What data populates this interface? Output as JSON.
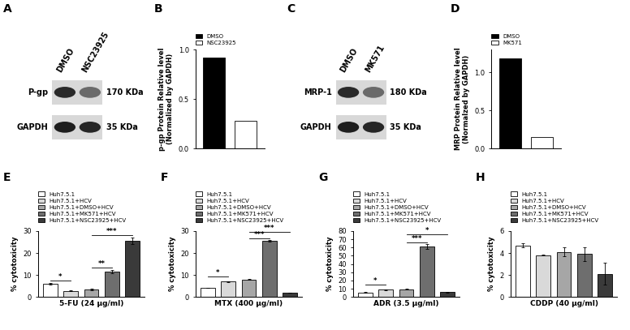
{
  "blots": [
    {
      "panel": "A",
      "lanes": [
        "DMSO",
        "NSC23925"
      ],
      "rows": [
        {
          "protein": "P-gp",
          "size": "170 KDa"
        },
        {
          "protein": "GAPDH",
          "size": "35 KDa"
        }
      ]
    },
    {
      "panel": "C",
      "lanes": [
        "DMSO",
        "MK571"
      ],
      "rows": [
        {
          "protein": "MRP-1",
          "size": "180 KDa"
        },
        {
          "protein": "GAPDH",
          "size": "35 KDa"
        }
      ]
    }
  ],
  "chart_data": [
    {
      "panel": "B",
      "type": "bar",
      "ylabel": "p-gp Protein Relative level\n(Normalized by GAPDH)",
      "ylim": [
        0,
        1.0
      ],
      "yticks": [
        {
          "value": 0,
          "label": "0.0"
        },
        {
          "value": 0.5,
          "label": "0.5"
        },
        {
          "value": 1.0,
          "label": "1.0"
        }
      ],
      "tick_labels": "y",
      "series": [
        {
          "name": "DMSO",
          "color": "#000000",
          "values": [
            0.92
          ]
        },
        {
          "name": "NSC23925",
          "color": "#ffffff",
          "values": [
            0.28
          ]
        }
      ]
    },
    {
      "panel": "D",
      "type": "bar",
      "ylabel": "MRP Protein Relative level\n(Normalzed by GAPDH)",
      "ylim": [
        0,
        1.3
      ],
      "yticks": [
        {
          "value": 0,
          "label": "0.0"
        },
        {
          "value": 0.5,
          "label": "0.5"
        },
        {
          "value": 1.0,
          "label": "1.0"
        }
      ],
      "tick_labels": "y",
      "series": [
        {
          "name": "DMSO",
          "color": "#000000",
          "values": [
            1.18
          ]
        },
        {
          "name": "MK571",
          "color": "#ffffff",
          "values": [
            0.15
          ]
        }
      ]
    },
    {
      "panel": "E",
      "type": "bar",
      "xlabel": "5-FU (24 μg/ml)",
      "ylabel": "% cytotoxicity",
      "ylim": [
        0,
        30
      ],
      "yticks": [
        0,
        10,
        20,
        30
      ],
      "tick_labels": "y",
      "series": [
        {
          "name": "Huh7.5.1",
          "color": "#ffffff",
          "values": [
            6.0
          ],
          "errors": [
            0.2
          ]
        },
        {
          "name": "Huh7.5.1+HCV",
          "color": "#d9d9d9",
          "values": [
            2.8
          ],
          "errors": [
            0.1
          ]
        },
        {
          "name": "Huh7.5.1+DMSO+HCV",
          "color": "#a6a6a6",
          "values": [
            3.5
          ],
          "errors": [
            0.3
          ]
        },
        {
          "name": "Huh7.5.1+MK571+HCV",
          "color": "#6e6e6e",
          "values": [
            11.5
          ],
          "errors": [
            0.8
          ]
        },
        {
          "name": "Huh7.5.1+NSC23925+HCV",
          "color": "#3a3a3a",
          "values": [
            25.5
          ],
          "errors": [
            1.5
          ]
        }
      ],
      "annotations": [
        {
          "text": "*",
          "from": 0,
          "to": 1,
          "y": 7.5
        },
        {
          "text": "**",
          "from": 2,
          "to": 3,
          "y": 13.5
        },
        {
          "text": "***",
          "from": 2,
          "to": 4,
          "y": 28
        }
      ]
    },
    {
      "panel": "F",
      "type": "bar",
      "xlabel": "MTX (400 μg/ml)",
      "ylabel": "% cytotoxicity",
      "ylim": [
        0,
        30
      ],
      "yticks": [
        0,
        10,
        20,
        30
      ],
      "tick_labels": "y",
      "series": [
        {
          "name": "Huh7.5.1",
          "color": "#ffffff",
          "values": [
            4.2
          ],
          "errors": [
            0.1
          ]
        },
        {
          "name": "Huh7.5.1+HCV",
          "color": "#d9d9d9",
          "values": [
            7.0
          ],
          "errors": [
            0.1
          ]
        },
        {
          "name": "Huh7.5.1+DMSO+HCV",
          "color": "#a6a6a6",
          "values": [
            8.0
          ],
          "errors": [
            0.2
          ]
        },
        {
          "name": "Huh7.5.1+MK571+HCV",
          "color": "#6e6e6e",
          "values": [
            25.5
          ],
          "errors": [
            0.5
          ]
        },
        {
          "name": "Huh7.5.1+NSC23925+HCV",
          "color": "#3a3a3a",
          "values": [
            2.0
          ],
          "errors": [
            0.1
          ]
        }
      ],
      "annotations": [
        {
          "text": "*",
          "from": 0,
          "to": 1,
          "y": 9.5
        },
        {
          "text": "***",
          "from": 2,
          "to": 3,
          "y": 26.5
        },
        {
          "text": "***",
          "from": 2,
          "to": 4,
          "y": 29.7
        }
      ]
    },
    {
      "panel": "G",
      "type": "bar",
      "xlabel": "ADR (3.5 μg/ml)",
      "ylabel": "% cytotoxicity",
      "ylim": [
        0,
        80
      ],
      "yticks": [
        0,
        10,
        20,
        30,
        40,
        50,
        60,
        70,
        80
      ],
      "tick_labels": "y",
      "series": [
        {
          "name": "Huh7.5.1",
          "color": "#ffffff",
          "values": [
            5.5
          ],
          "errors": [
            0.5
          ]
        },
        {
          "name": "Huh7.5.1+HCV",
          "color": "#d9d9d9",
          "values": [
            9.0
          ],
          "errors": [
            0.5
          ]
        },
        {
          "name": "Huh7.5.1+DMSO+HCV",
          "color": "#a6a6a6",
          "values": [
            9.5
          ],
          "errors": [
            0.5
          ]
        },
        {
          "name": "Huh7.5.1+MK571+HCV",
          "color": "#6e6e6e",
          "values": [
            61.0
          ],
          "errors": [
            3.0
          ]
        },
        {
          "name": "Huh7.5.1+NSC23925+HCV",
          "color": "#3a3a3a",
          "values": [
            6.0
          ],
          "errors": [
            0.3
          ]
        }
      ],
      "annotations": [
        {
          "text": "*",
          "from": 0,
          "to": 1,
          "y": 15
        },
        {
          "text": "***",
          "from": 2,
          "to": 3,
          "y": 66
        },
        {
          "text": "*",
          "from": 2,
          "to": 4,
          "y": 76
        }
      ]
    },
    {
      "panel": "H",
      "type": "bar",
      "xlabel": "CDDP (40 μg/ml)",
      "ylabel": "% cytotoxicity",
      "ylim": [
        0,
        6
      ],
      "yticks": [
        0,
        2,
        4,
        6
      ],
      "tick_labels": "y",
      "series": [
        {
          "name": "Huh7.5.1",
          "color": "#ffffff",
          "values": [
            4.7
          ],
          "errors": [
            0.2
          ]
        },
        {
          "name": "Huh7.5.1+HCV",
          "color": "#d9d9d9",
          "values": [
            3.8
          ],
          "errors": [
            0.05
          ]
        },
        {
          "name": "Huh7.5.1+DMSO+HCV",
          "color": "#a6a6a6",
          "values": [
            4.1
          ],
          "errors": [
            0.4
          ]
        },
        {
          "name": "Huh7.5.1+MK571+HCV",
          "color": "#6e6e6e",
          "values": [
            3.9
          ],
          "errors": [
            0.6
          ]
        },
        {
          "name": "Huh7.5.1+NSC23925+HCV",
          "color": "#3a3a3a",
          "values": [
            2.1
          ],
          "errors": [
            1.0
          ]
        }
      ]
    }
  ]
}
